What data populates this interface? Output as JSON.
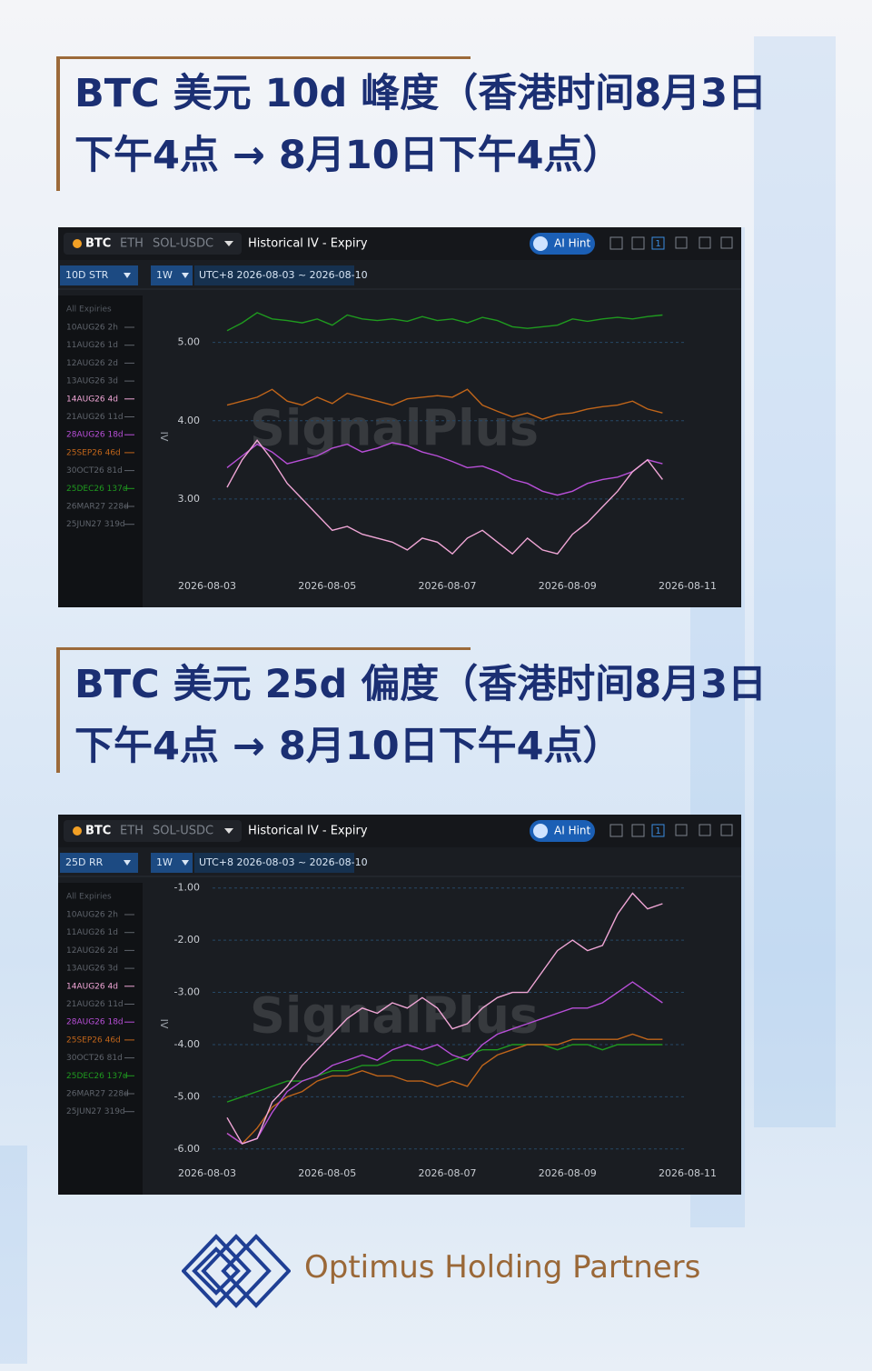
{
  "headings": [
    {
      "line1": "BTC 美元 10d 峰度（香港时间8月3日",
      "line2": "下午4点 → 8月10日下午4点）"
    },
    {
      "line1": "BTC 美元 25d 偏度（香港时间8月3日",
      "line2": "下午4点 → 8月10日下午4点）"
    }
  ],
  "panels": [
    {
      "tabs": [
        "BTC",
        "ETH",
        "SOL-USDC"
      ],
      "view": "Historical IV - Expiry",
      "ai_hint": "AI Hint",
      "window_count": "1",
      "metric": "10D STR",
      "period": "1W",
      "range": "UTC+8 2026-08-03 ~ 2026-08-10",
      "expiries_header": "All Expiries",
      "expiries": [
        "10AUG26 2h",
        "11AUG26 1d",
        "12AUG26 2d",
        "13AUG26 3d",
        "14AUG26 4d",
        "21AUG26 11d",
        "28AUG26 18d",
        "25SEP26 46d",
        "30OCT26 81d",
        "25DEC26 137d",
        "26MAR27 228d",
        "25JUN27 319d"
      ],
      "watermark": "SignalPlus"
    },
    {
      "tabs": [
        "BTC",
        "ETH",
        "SOL-USDC"
      ],
      "view": "Historical IV - Expiry",
      "ai_hint": "AI Hint",
      "window_count": "1",
      "metric": "25D RR",
      "period": "1W",
      "range": "UTC+8 2026-08-03 ~ 2026-08-10",
      "expiries_header": "All Expiries",
      "expiries": [
        "10AUG26 2h",
        "11AUG26 1d",
        "12AUG26 2d",
        "13AUG26 3d",
        "14AUG26 4d",
        "21AUG26 11d",
        "28AUG26 18d",
        "25SEP26 46d",
        "30OCT26 81d",
        "25DEC26 137d",
        "26MAR27 228d",
        "25JUN27 319d"
      ],
      "watermark": "SignalPlus"
    }
  ],
  "chart_data": [
    {
      "type": "line",
      "ylabel": "IV",
      "x": [
        "2026-08-03 08:00",
        "2026-08-03 14:00",
        "2026-08-03 20:00",
        "2026-08-04 02:00",
        "2026-08-04 08:00",
        "2026-08-04 14:00",
        "2026-08-04 20:00",
        "2026-08-05 02:00",
        "2026-08-05 08:00",
        "2026-08-05 14:00",
        "2026-08-05 20:00",
        "2026-08-06 02:00",
        "2026-08-06 08:00",
        "2026-08-06 14:00",
        "2026-08-06 20:00",
        "2026-08-07 02:00",
        "2026-08-07 08:00",
        "2026-08-07 14:00",
        "2026-08-07 20:00",
        "2026-08-08 02:00",
        "2026-08-08 08:00",
        "2026-08-08 14:00",
        "2026-08-08 20:00",
        "2026-08-09 02:00",
        "2026-08-09 08:00",
        "2026-08-09 14:00",
        "2026-08-09 20:00",
        "2026-08-10 02:00",
        "2026-08-10 08:00",
        "2026-08-10 14:00"
      ],
      "xlim": [
        "2026-08-03",
        "2026-08-11"
      ],
      "xticks": [
        "2026-08-03",
        "2026-08-05",
        "2026-08-07",
        "2026-08-09",
        "2026-08-11"
      ],
      "ylim": [
        2.0,
        5.6
      ],
      "yticks": [
        {
          "value": 3,
          "label": "3.00"
        },
        {
          "value": 4,
          "label": "4.00"
        },
        {
          "value": 5,
          "label": "5.00"
        }
      ],
      "grid": true,
      "series": [
        {
          "name": "25DEC26 137d",
          "color": "#1f9a1f",
          "values": [
            5.15,
            5.25,
            5.38,
            5.3,
            5.28,
            5.25,
            5.3,
            5.22,
            5.35,
            5.3,
            5.28,
            5.3,
            5.27,
            5.33,
            5.28,
            5.3,
            5.25,
            5.32,
            5.28,
            5.2,
            5.18,
            5.2,
            5.22,
            5.3,
            5.27,
            5.3,
            5.32,
            5.3,
            5.33,
            5.35
          ]
        },
        {
          "name": "25SEP26 46d",
          "color": "#c0651a",
          "values": [
            4.2,
            4.25,
            4.3,
            4.4,
            4.25,
            4.2,
            4.3,
            4.22,
            4.35,
            4.3,
            4.25,
            4.2,
            4.28,
            4.3,
            4.32,
            4.3,
            4.4,
            4.2,
            4.12,
            4.05,
            4.1,
            4.02,
            4.08,
            4.1,
            4.15,
            4.18,
            4.2,
            4.25,
            4.15,
            4.1
          ]
        },
        {
          "name": "28AUG26 18d",
          "color": "#b84fd8",
          "values": [
            3.4,
            3.55,
            3.7,
            3.6,
            3.45,
            3.5,
            3.55,
            3.65,
            3.7,
            3.6,
            3.65,
            3.72,
            3.68,
            3.6,
            3.55,
            3.48,
            3.4,
            3.42,
            3.35,
            3.25,
            3.2,
            3.1,
            3.05,
            3.1,
            3.2,
            3.25,
            3.28,
            3.35,
            3.5,
            3.45
          ]
        },
        {
          "name": "14AUG26 4d",
          "color": "#f0a6d6",
          "values": [
            3.15,
            3.5,
            3.75,
            3.5,
            3.2,
            3.0,
            2.8,
            2.6,
            2.65,
            2.55,
            2.5,
            2.45,
            2.35,
            2.5,
            2.45,
            2.3,
            2.5,
            2.6,
            2.45,
            2.3,
            2.5,
            2.35,
            2.3,
            2.55,
            2.7,
            2.9,
            3.1,
            3.35,
            3.5,
            3.25
          ]
        }
      ]
    },
    {
      "type": "line",
      "ylabel": "IV",
      "x": [
        "2026-08-03 08:00",
        "2026-08-03 14:00",
        "2026-08-03 20:00",
        "2026-08-04 02:00",
        "2026-08-04 08:00",
        "2026-08-04 14:00",
        "2026-08-04 20:00",
        "2026-08-05 02:00",
        "2026-08-05 08:00",
        "2026-08-05 14:00",
        "2026-08-05 20:00",
        "2026-08-06 02:00",
        "2026-08-06 08:00",
        "2026-08-06 14:00",
        "2026-08-06 20:00",
        "2026-08-07 02:00",
        "2026-08-07 08:00",
        "2026-08-07 14:00",
        "2026-08-07 20:00",
        "2026-08-08 02:00",
        "2026-08-08 08:00",
        "2026-08-08 14:00",
        "2026-08-08 20:00",
        "2026-08-09 02:00",
        "2026-08-09 08:00",
        "2026-08-09 14:00",
        "2026-08-09 20:00",
        "2026-08-10 02:00",
        "2026-08-10 08:00",
        "2026-08-10 14:00"
      ],
      "xlim": [
        "2026-08-03",
        "2026-08-11"
      ],
      "xticks": [
        "2026-08-03",
        "2026-08-05",
        "2026-08-07",
        "2026-08-09",
        "2026-08-11"
      ],
      "ylim": [
        -6.3,
        -0.9
      ],
      "yticks": [
        {
          "value": -6,
          "label": "-6.00"
        },
        {
          "value": -5,
          "label": "-5.00"
        },
        {
          "value": -4,
          "label": "-4.00"
        },
        {
          "value": -3,
          "label": "-3.00"
        },
        {
          "value": -2,
          "label": "-2.00"
        },
        {
          "value": -1,
          "label": "-1.00"
        }
      ],
      "grid": true,
      "series": [
        {
          "name": "25DEC26 137d",
          "color": "#1f9a1f",
          "values": [
            -5.1,
            -5.0,
            -4.9,
            -4.8,
            -4.7,
            -4.7,
            -4.6,
            -4.5,
            -4.5,
            -4.4,
            -4.4,
            -4.3,
            -4.3,
            -4.3,
            -4.4,
            -4.3,
            -4.2,
            -4.1,
            -4.1,
            -4.0,
            -4.0,
            -4.0,
            -4.1,
            -4.0,
            -4.0,
            -4.1,
            -4.0,
            -4.0,
            -4.0,
            -4.0
          ]
        },
        {
          "name": "25SEP26 46d",
          "color": "#c0651a",
          "values": [
            -5.7,
            -5.9,
            -5.6,
            -5.2,
            -5.0,
            -4.9,
            -4.7,
            -4.6,
            -4.6,
            -4.5,
            -4.6,
            -4.6,
            -4.7,
            -4.7,
            -4.8,
            -4.7,
            -4.8,
            -4.4,
            -4.2,
            -4.1,
            -4.0,
            -4.0,
            -4.0,
            -3.9,
            -3.9,
            -3.9,
            -3.9,
            -3.8,
            -3.9,
            -3.9
          ]
        },
        {
          "name": "28AUG26 18d",
          "color": "#b84fd8",
          "values": [
            -5.7,
            -5.9,
            -5.8,
            -5.3,
            -4.9,
            -4.7,
            -4.6,
            -4.4,
            -4.3,
            -4.2,
            -4.3,
            -4.1,
            -4.0,
            -4.1,
            -4.0,
            -4.2,
            -4.3,
            -4.0,
            -3.8,
            -3.7,
            -3.6,
            -3.5,
            -3.4,
            -3.3,
            -3.3,
            -3.2,
            -3.0,
            -2.8,
            -3.0,
            -3.2
          ]
        },
        {
          "name": "14AUG26 4d",
          "color": "#f0a6d6",
          "values": [
            -5.4,
            -5.9,
            -5.8,
            -5.1,
            -4.8,
            -4.4,
            -4.1,
            -3.8,
            -3.5,
            -3.3,
            -3.4,
            -3.2,
            -3.3,
            -3.1,
            -3.3,
            -3.7,
            -3.6,
            -3.3,
            -3.1,
            -3.0,
            -3.0,
            -2.6,
            -2.2,
            -2.0,
            -2.2,
            -2.1,
            -1.5,
            -1.1,
            -1.4,
            -1.3
          ]
        }
      ]
    }
  ],
  "footer": {
    "brand": "Optimus Holding Partners"
  }
}
